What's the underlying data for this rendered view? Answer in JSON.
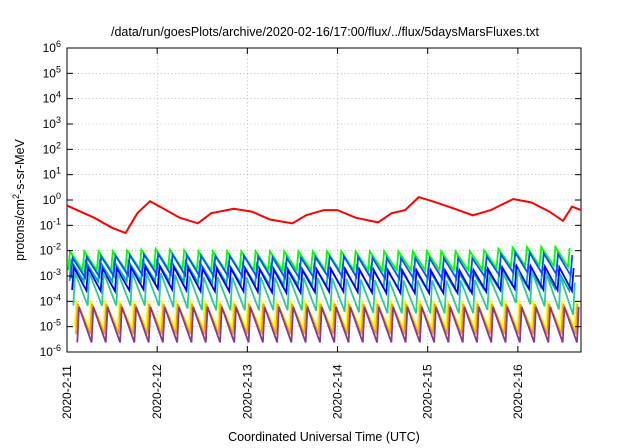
{
  "chart_data": {
    "type": "line",
    "title": "/data/run/goesPlots/archive/2020-02-16/17:00/flux/../flux/5daysMarsFluxes.txt",
    "xlabel": "Coordinated Universal Time (UTC)",
    "ylabel": {
      "base": "protons/cm",
      "sup": "2",
      "rest": "-s-sr-MeV"
    },
    "yscale": "log",
    "ylim": [
      1e-06,
      1000000.0
    ],
    "y_ticks": [
      {
        "base": "10",
        "exp": "6"
      },
      {
        "base": "10",
        "exp": "5"
      },
      {
        "base": "10",
        "exp": "4"
      },
      {
        "base": "10",
        "exp": "3"
      },
      {
        "base": "10",
        "exp": "2"
      },
      {
        "base": "10",
        "exp": "1"
      },
      {
        "base": "10",
        "exp": "0"
      },
      {
        "base": "10",
        "exp": "-1"
      },
      {
        "base": "10",
        "exp": "-2"
      },
      {
        "base": "10",
        "exp": "-3"
      },
      {
        "base": "10",
        "exp": "-4"
      },
      {
        "base": "10",
        "exp": "-5"
      },
      {
        "base": "10",
        "exp": "-6"
      }
    ],
    "xlim": [
      0,
      5.7
    ],
    "x_ticks": [
      {
        "label": "2020-2-11",
        "x": 0
      },
      {
        "label": "2020-2-12",
        "x": 1
      },
      {
        "label": "2020-2-13",
        "x": 2
      },
      {
        "label": "2020-2-14",
        "x": 3
      },
      {
        "label": "2020-2-15",
        "x": 4
      },
      {
        "label": "2020-2-16",
        "x": 5
      }
    ],
    "grid": true,
    "series": [
      {
        "color": "#ff0000",
        "kind": "envelope",
        "teeth": 5,
        "tooth_depth": 0.9,
        "points": [
          [
            0,
            0.6
          ],
          [
            0.3,
            0.2
          ],
          [
            0.5,
            0.08
          ],
          [
            0.65,
            0.05
          ],
          [
            0.78,
            0.3
          ],
          [
            0.92,
            0.9
          ],
          [
            1.05,
            0.5
          ],
          [
            1.25,
            0.2
          ],
          [
            1.45,
            0.12
          ],
          [
            1.6,
            0.3
          ],
          [
            1.85,
            0.45
          ],
          [
            2.05,
            0.35
          ],
          [
            2.25,
            0.17
          ],
          [
            2.5,
            0.12
          ],
          [
            2.65,
            0.25
          ],
          [
            2.85,
            0.4
          ],
          [
            3.0,
            0.4
          ],
          [
            3.2,
            0.2
          ],
          [
            3.45,
            0.13
          ],
          [
            3.6,
            0.3
          ],
          [
            3.75,
            0.4
          ],
          [
            3.9,
            1.3
          ],
          [
            4.05,
            0.9
          ],
          [
            4.3,
            0.45
          ],
          [
            4.5,
            0.25
          ],
          [
            4.7,
            0.4
          ],
          [
            4.95,
            1.1
          ],
          [
            5.15,
            0.8
          ],
          [
            5.35,
            0.35
          ],
          [
            5.5,
            0.15
          ],
          [
            5.6,
            0.55
          ],
          [
            5.7,
            0.4
          ]
        ]
      },
      {
        "color": "#00ff00",
        "kind": "sawtooth",
        "teeth": 36,
        "tooth_depth": 0.75,
        "points": [
          [
            0,
            0.004
          ],
          [
            0.5,
            0.004
          ],
          [
            1.0,
            0.005
          ],
          [
            1.5,
            0.004
          ],
          [
            2.0,
            0.004
          ],
          [
            2.5,
            0.004
          ],
          [
            3.0,
            0.004
          ],
          [
            3.5,
            0.004
          ],
          [
            4.0,
            0.004
          ],
          [
            4.5,
            0.004
          ],
          [
            5.0,
            0.006
          ],
          [
            5.4,
            0.006
          ],
          [
            5.7,
            0.005
          ]
        ]
      },
      {
        "color": "#00aaaa",
        "kind": "sawtooth",
        "teeth": 36,
        "tooth_depth": 0.8,
        "points": [
          [
            0,
            0.0016
          ],
          [
            0.5,
            0.0015
          ],
          [
            1.0,
            0.0016
          ],
          [
            1.5,
            0.0014
          ],
          [
            2.0,
            0.0012
          ],
          [
            2.5,
            0.0011
          ],
          [
            3.0,
            0.001
          ],
          [
            3.5,
            0.0009
          ],
          [
            4.0,
            0.0008
          ],
          [
            4.5,
            0.0007
          ],
          [
            5.0,
            0.0012
          ],
          [
            5.4,
            0.0008
          ],
          [
            5.7,
            0.0006
          ]
        ]
      },
      {
        "color": "#0055ff",
        "kind": "sawtooth",
        "teeth": 36,
        "tooth_depth": 0.8,
        "points": [
          [
            0,
            0.002
          ],
          [
            0.5,
            0.0025
          ],
          [
            1.0,
            0.003
          ],
          [
            1.5,
            0.0025
          ],
          [
            2.0,
            0.0025
          ],
          [
            2.5,
            0.002
          ],
          [
            3.0,
            0.0025
          ],
          [
            3.5,
            0.002
          ],
          [
            4.0,
            0.002
          ],
          [
            4.5,
            0.002
          ],
          [
            5.0,
            0.0035
          ],
          [
            5.4,
            0.003
          ],
          [
            5.7,
            0.0025
          ]
        ]
      },
      {
        "color": "#0000ee",
        "kind": "sawtooth",
        "teeth": 36,
        "tooth_depth": 0.9,
        "points": [
          [
            0,
            0.0008
          ],
          [
            0.5,
            0.0007
          ],
          [
            1.0,
            0.0009
          ],
          [
            1.5,
            0.0007
          ],
          [
            2.0,
            0.0007
          ],
          [
            2.5,
            0.0006
          ],
          [
            3.0,
            0.0007
          ],
          [
            3.5,
            0.0006
          ],
          [
            4.0,
            0.0006
          ],
          [
            4.5,
            0.0006
          ],
          [
            5.0,
            0.0009
          ],
          [
            5.4,
            0.0008
          ],
          [
            5.7,
            0.0007
          ]
        ]
      },
      {
        "color": "#2ec99a",
        "kind": "sawtooth",
        "teeth": 36,
        "tooth_depth": 1.3,
        "points": [
          [
            0,
            0.0003
          ],
          [
            0.5,
            0.0003
          ],
          [
            1.0,
            0.0003
          ],
          [
            1.5,
            0.0002
          ],
          [
            2.0,
            0.0002
          ],
          [
            2.5,
            0.0002
          ],
          [
            3.0,
            0.00018
          ],
          [
            3.5,
            0.00015
          ],
          [
            4.0,
            0.00015
          ],
          [
            4.5,
            0.00015
          ],
          [
            5.0,
            0.0004
          ],
          [
            5.4,
            0.00025
          ],
          [
            5.7,
            0.0001
          ]
        ]
      },
      {
        "color": "#ffff00",
        "kind": "sawtooth",
        "teeth": 36,
        "tooth_depth": 1.0,
        "points": [
          [
            0,
            3e-05
          ],
          [
            1.0,
            3e-05
          ],
          [
            2.0,
            3e-05
          ],
          [
            3.0,
            3e-05
          ],
          [
            4.0,
            3e-05
          ],
          [
            5.0,
            3e-05
          ],
          [
            5.7,
            3e-05
          ]
        ]
      },
      {
        "color": "#f0a020",
        "kind": "sawtooth",
        "teeth": 36,
        "tooth_depth": 1.2,
        "points": [
          [
            0,
            2e-05
          ],
          [
            1.0,
            2e-05
          ],
          [
            2.0,
            2e-05
          ],
          [
            3.0,
            2e-05
          ],
          [
            4.0,
            2e-05
          ],
          [
            5.0,
            2e-05
          ],
          [
            5.7,
            2e-05
          ]
        ]
      },
      {
        "color": "#8b3a8b",
        "kind": "sawtooth",
        "teeth": 36,
        "tooth_depth": 1.4,
        "points": [
          [
            0,
            1.2e-05
          ],
          [
            1.0,
            1.2e-05
          ],
          [
            2.0,
            1.2e-05
          ],
          [
            3.0,
            1.2e-05
          ],
          [
            4.0,
            1.2e-05
          ],
          [
            5.0,
            1.2e-05
          ],
          [
            5.7,
            1.2e-05
          ]
        ]
      }
    ]
  }
}
